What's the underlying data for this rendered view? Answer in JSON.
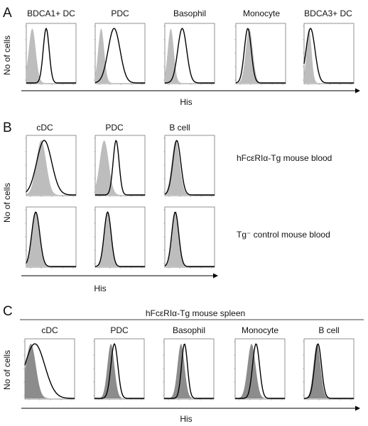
{
  "figure": {
    "panel_a": {
      "letter": "A",
      "populations": [
        "BDCA1+ DC",
        "PDC",
        "Basophil",
        "Monocyte",
        "BDCA3+ DC"
      ],
      "y_label": "No of cells",
      "x_label": "His"
    },
    "panel_b": {
      "letter": "B",
      "populations": [
        "cDC",
        "PDC",
        "B cell"
      ],
      "y_label": "No of cells",
      "x_label": "His",
      "row_labels": [
        "hFcεRIα-Tg mouse blood",
        "Tg⁻ control mouse blood"
      ]
    },
    "panel_c": {
      "letter": "C",
      "group_title": "hFcεRIα-Tg mouse spleen",
      "populations": [
        "cDC",
        "PDC",
        "Basophil",
        "Monocyte",
        "B cell"
      ],
      "y_label": "No of cells",
      "x_label": "His"
    }
  },
  "colors": {
    "isotype_fill_light": "#bdbdbd",
    "isotype_fill_dark": "#8c8c8c",
    "stain_line": "#000000"
  },
  "chart_data": [
    {
      "type": "area",
      "panel": "A",
      "x_scale": "log",
      "y_label": "No of cells",
      "x_label": "His",
      "histograms": [
        {
          "population": "BDCA1+ DC",
          "isotype_peak": 0.12,
          "stain_peak": 0.4,
          "stain_width": 0.06,
          "isotype_width": 0.07
        },
        {
          "population": "PDC",
          "isotype_peak": 0.12,
          "stain_peak": 0.38,
          "stain_width": 0.12,
          "isotype_width": 0.06
        },
        {
          "population": "Basophil",
          "isotype_peak": 0.12,
          "stain_peak": 0.35,
          "stain_width": 0.09,
          "isotype_width": 0.06
        },
        {
          "population": "Monocyte",
          "isotype_peak": 0.27,
          "stain_peak": 0.24,
          "stain_width": 0.07,
          "isotype_width": 0.07
        },
        {
          "population": "BDCA3+ DC",
          "isotype_peak": 0.1,
          "stain_peak": 0.13,
          "stain_width": 0.09,
          "isotype_width": 0.05
        }
      ]
    },
    {
      "type": "area",
      "panel": "B",
      "x_scale": "log",
      "histograms": [
        {
          "row": "hFcεRIα-Tg mouse blood",
          "population": "cDC",
          "isotype_peak": 0.3,
          "stain_peak": 0.36,
          "stain_width": 0.15,
          "isotype_width": 0.1
        },
        {
          "row": "hFcεRIα-Tg mouse blood",
          "population": "PDC",
          "isotype_peak": 0.18,
          "stain_peak": 0.42,
          "stain_width": 0.06,
          "isotype_width": 0.09
        },
        {
          "row": "hFcεRIα-Tg mouse blood",
          "population": "B cell",
          "isotype_peak": 0.22,
          "stain_peak": 0.24,
          "stain_width": 0.08,
          "isotype_width": 0.08
        },
        {
          "row": "Tg⁻ control mouse blood",
          "population": "cDC",
          "isotype_peak": 0.18,
          "stain_peak": 0.19,
          "stain_width": 0.08,
          "isotype_width": 0.08
        },
        {
          "row": "Tg⁻ control mouse blood",
          "population": "PDC",
          "isotype_peak": 0.25,
          "stain_peak": 0.25,
          "stain_width": 0.07,
          "isotype_width": 0.07
        },
        {
          "row": "Tg⁻ control mouse blood",
          "population": "B cell",
          "isotype_peak": 0.21,
          "stain_peak": 0.21,
          "stain_width": 0.07,
          "isotype_width": 0.07
        }
      ]
    },
    {
      "type": "area",
      "panel": "C",
      "x_scale": "log",
      "group_title": "hFcεRIα-Tg mouse spleen",
      "histograms": [
        {
          "population": "cDC",
          "isotype_peak": 0.12,
          "stain_peak": 0.2,
          "stain_width": 0.2,
          "isotype_width": 0.1
        },
        {
          "population": "PDC",
          "isotype_peak": 0.33,
          "stain_peak": 0.4,
          "stain_width": 0.07,
          "isotype_width": 0.07
        },
        {
          "population": "Basophil",
          "isotype_peak": 0.34,
          "stain_peak": 0.41,
          "stain_width": 0.06,
          "isotype_width": 0.07
        },
        {
          "population": "Monocyte",
          "isotype_peak": 0.33,
          "stain_peak": 0.42,
          "stain_width": 0.07,
          "isotype_width": 0.08
        },
        {
          "population": "B cell",
          "isotype_peak": 0.26,
          "stain_peak": 0.28,
          "stain_width": 0.07,
          "isotype_width": 0.07
        }
      ]
    }
  ]
}
